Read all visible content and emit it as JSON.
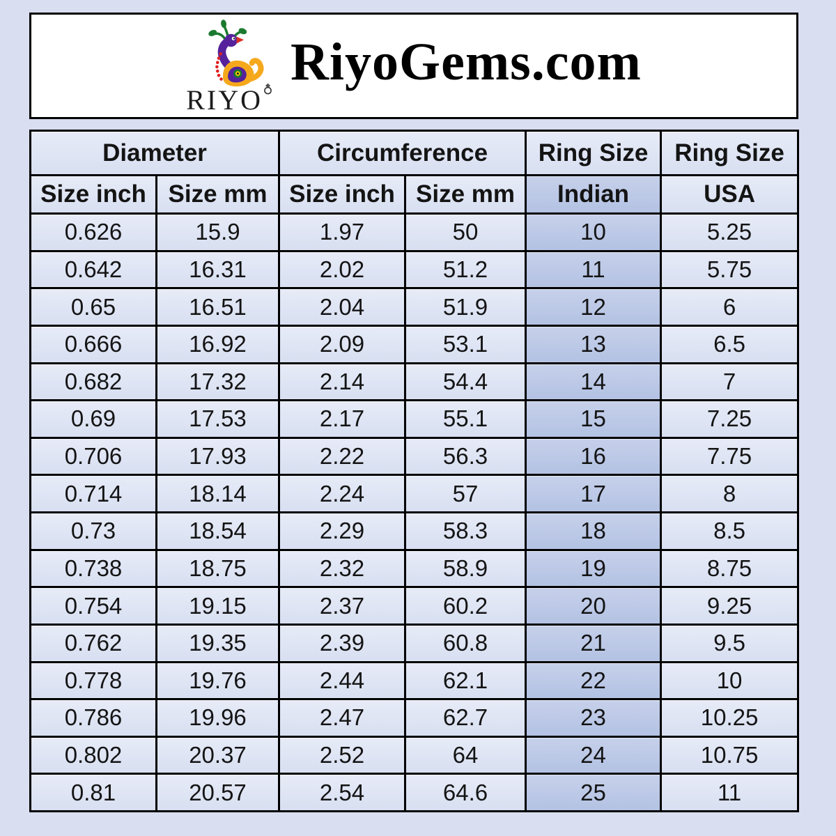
{
  "page": {
    "background_color": "#d9def0"
  },
  "header": {
    "brand": "RiyoGems.com",
    "logo_text": "RIYO",
    "logo_icon": "peacock-icon",
    "ring_mark_icon": "diamond-ring-icon"
  },
  "colors": {
    "page_bg": "#d9def0",
    "panel_bg": "#ffffff",
    "border": "#000000",
    "cell_bg": "#d7dff1",
    "cell_bg_light": "#e7ebf7",
    "highlight_bg": "#b3c2e3",
    "highlight_bg_light": "#c6d0ea",
    "text": "#141414"
  },
  "chart_data": {
    "type": "table",
    "title": "RiyoGems.com",
    "column_groups": [
      {
        "label": "Diameter",
        "colspan": 2
      },
      {
        "label": "Circumference",
        "colspan": 2
      },
      {
        "label": "Ring Size",
        "colspan": 1
      },
      {
        "label": "Ring Size",
        "colspan": 1
      }
    ],
    "columns": [
      "Size inch",
      "Size mm",
      "Size inch",
      "Size mm",
      "Indian",
      "USA"
    ],
    "highlight_column": "Indian",
    "highlight_column_index": 4,
    "rows": [
      [
        "0.626",
        "15.9",
        "1.97",
        "50",
        "10",
        "5.25"
      ],
      [
        "0.642",
        "16.31",
        "2.02",
        "51.2",
        "11",
        "5.75"
      ],
      [
        "0.65",
        "16.51",
        "2.04",
        "51.9",
        "12",
        "6"
      ],
      [
        "0.666",
        "16.92",
        "2.09",
        "53.1",
        "13",
        "6.5"
      ],
      [
        "0.682",
        "17.32",
        "2.14",
        "54.4",
        "14",
        "7"
      ],
      [
        "0.69",
        "17.53",
        "2.17",
        "55.1",
        "15",
        "7.25"
      ],
      [
        "0.706",
        "17.93",
        "2.22",
        "56.3",
        "16",
        "7.75"
      ],
      [
        "0.714",
        "18.14",
        "2.24",
        "57",
        "17",
        "8"
      ],
      [
        "0.73",
        "18.54",
        "2.29",
        "58.3",
        "18",
        "8.5"
      ],
      [
        "0.738",
        "18.75",
        "2.32",
        "58.9",
        "19",
        "8.75"
      ],
      [
        "0.754",
        "19.15",
        "2.37",
        "60.2",
        "20",
        "9.25"
      ],
      [
        "0.762",
        "19.35",
        "2.39",
        "60.8",
        "21",
        "9.5"
      ],
      [
        "0.778",
        "19.76",
        "2.44",
        "62.1",
        "22",
        "10"
      ],
      [
        "0.786",
        "19.96",
        "2.47",
        "62.7",
        "23",
        "10.25"
      ],
      [
        "0.802",
        "20.37",
        "2.52",
        "64",
        "24",
        "10.75"
      ],
      [
        "0.81",
        "20.57",
        "2.54",
        "64.6",
        "25",
        "11"
      ]
    ]
  }
}
